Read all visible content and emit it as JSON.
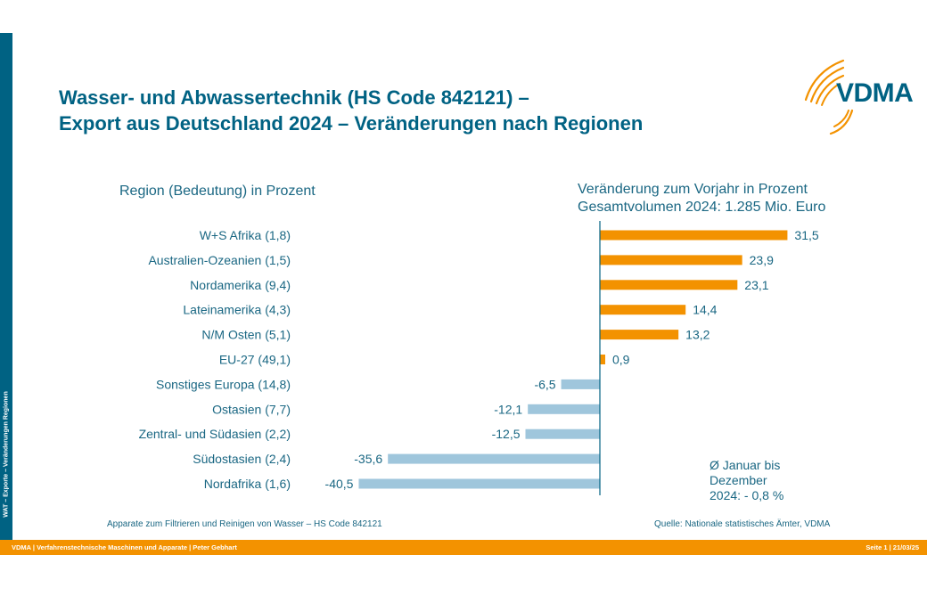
{
  "slide": {
    "title_line1": "Wasser- und Abwassertechnik (HS Code 842121) –",
    "title_line2": "Export aus Deutschland 2024 – Veränderungen nach Regionen",
    "side_label": "WAT – Exporte – Veränderungen Regionen",
    "logo_text": "VDMA",
    "left_header": "Region (Bedeutung) in Prozent",
    "right_header_line1": "Veränderung zum Vorjahr in Prozent",
    "right_header_line2": "Gesamtvolumen 2024: 1.285 Mio. Euro",
    "note_line1": "Ø Januar bis",
    "note_line2": "Dezember",
    "note_line3": "2024: - 0,8 %",
    "footnote_left": "Apparate zum Filtrieren und Reinigen von Wasser – HS Code 842121",
    "footnote_right": "Quelle: Nationale statistisches Ämter, VDMA",
    "footer_left": "VDMA | Verfahrenstechnische Maschinen und Apparate | Peter Gebhart",
    "footer_right": "Seite 1 | 21/03/25"
  },
  "colors": {
    "brand_blue": "#006283",
    "text_blue": "#1a6783",
    "positive_bar": "#f39200",
    "negative_bar": "#9fc6dc",
    "footer_orange": "#f39200"
  },
  "chart_data": {
    "type": "bar",
    "orientation": "horizontal",
    "title": "Veränderung zum Vorjahr in Prozent",
    "subtitle": "Gesamtvolumen 2024: 1.285 Mio. Euro",
    "xlabel": "",
    "ylabel": "Region (Bedeutung) in Prozent",
    "categories": [
      "W+S Afrika (1,8)",
      "Australien-Ozeanien (1,5)",
      "Nordamerika (9,4)",
      "Lateinamerika (4,3)",
      "N/M Osten (5,1)",
      "EU-27 (49,1)",
      "Sonstiges Europa (14,8)",
      "Ostasien (7,7)",
      "Zentral- und Südasien (2,2)",
      "Südostasien (2,4)",
      "Nordafrika (1,6)"
    ],
    "values": [
      31.5,
      23.9,
      23.1,
      14.4,
      13.2,
      0.9,
      -6.5,
      -12.1,
      -12.5,
      -35.6,
      -40.5
    ],
    "value_labels": [
      "31,5",
      "23,9",
      "23,1",
      "14,4",
      "13,2",
      "0,9",
      "-6,5",
      "-12,1",
      "-12,5",
      "-35,6",
      "-40,5"
    ],
    "xlim": [
      -41,
      32
    ],
    "grid": false,
    "legend": "none"
  }
}
